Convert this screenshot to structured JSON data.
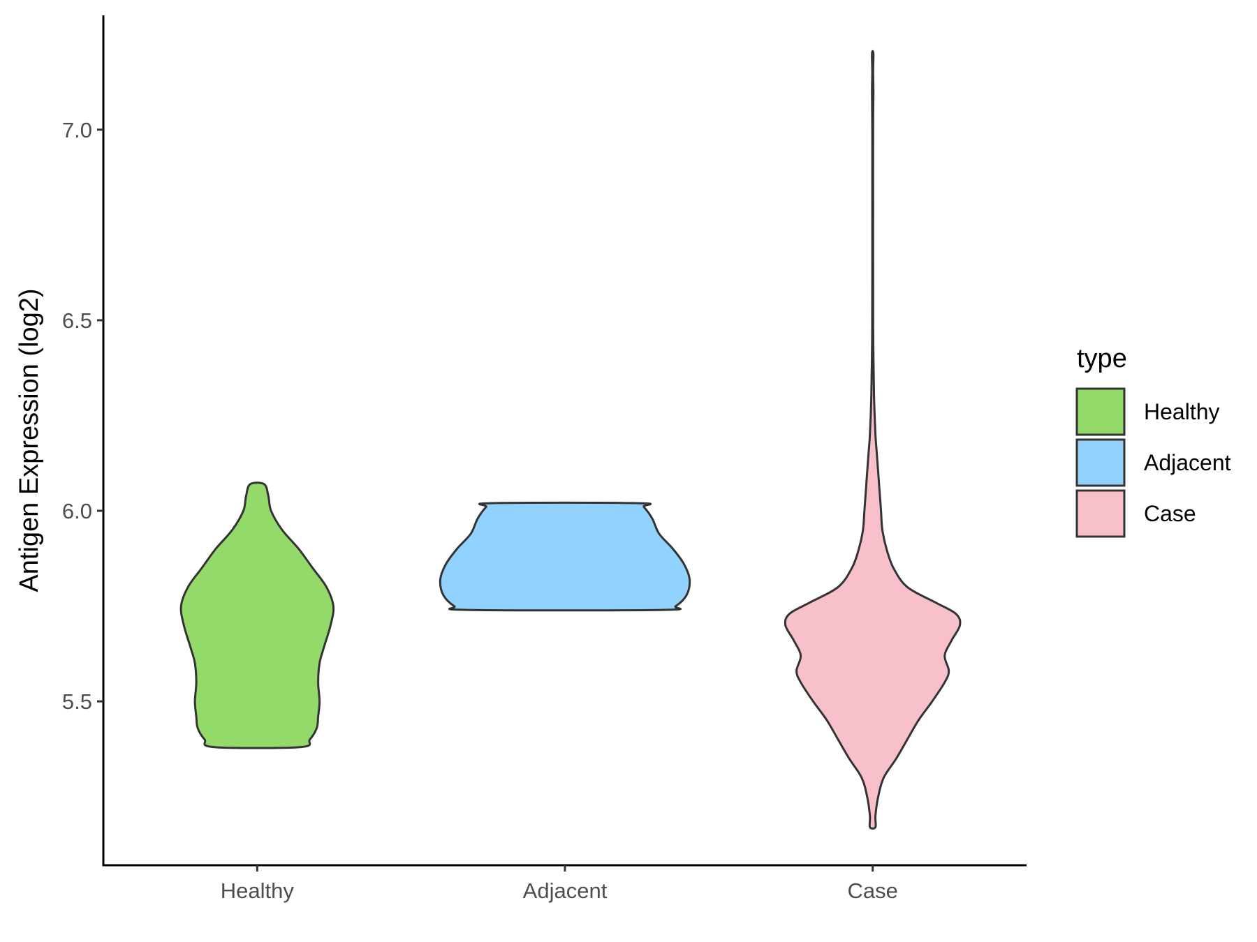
{
  "chart_data": {
    "type": "violin",
    "ylabel": "Antigen Expression (log2)",
    "xlabel": "",
    "ylim": [
      5.07,
      7.3
    ],
    "yticks": [
      5.5,
      6.0,
      6.5,
      7.0
    ],
    "ytick_labels": [
      "5.5",
      "6.0",
      "6.5",
      "7.0"
    ],
    "categories": [
      "Healthy",
      "Adjacent",
      "Case"
    ],
    "legend": {
      "title": "type",
      "position": "right",
      "entries": [
        "Healthy",
        "Adjacent",
        "Case"
      ]
    },
    "grid": false,
    "series": [
      {
        "category": "Healthy",
        "color": "#93DA6A",
        "min": 5.38,
        "max": 6.07,
        "density_profile": [
          [
            5.38,
            0.31
          ],
          [
            5.4,
            0.38
          ],
          [
            5.43,
            0.43
          ],
          [
            5.46,
            0.44
          ],
          [
            5.5,
            0.45
          ],
          [
            5.55,
            0.44
          ],
          [
            5.6,
            0.45
          ],
          [
            5.64,
            0.48
          ],
          [
            5.7,
            0.53
          ],
          [
            5.75,
            0.55
          ],
          [
            5.8,
            0.5
          ],
          [
            5.85,
            0.4
          ],
          [
            5.9,
            0.3
          ],
          [
            5.95,
            0.18
          ],
          [
            6.0,
            0.1
          ],
          [
            6.04,
            0.08
          ],
          [
            6.07,
            0.05
          ]
        ]
      },
      {
        "category": "Adjacent",
        "color": "#92D2FF",
        "min": 5.74,
        "max": 6.02,
        "density_profile": [
          [
            5.74,
            0.7
          ],
          [
            5.75,
            0.8
          ],
          [
            5.78,
            0.88
          ],
          [
            5.82,
            0.9
          ],
          [
            5.86,
            0.86
          ],
          [
            5.9,
            0.78
          ],
          [
            5.94,
            0.68
          ],
          [
            5.98,
            0.63
          ],
          [
            6.01,
            0.57
          ],
          [
            6.02,
            0.53
          ]
        ]
      },
      {
        "category": "Case",
        "color": "#F7C0CB",
        "min": 5.17,
        "max": 7.2,
        "density_profile": [
          [
            5.17,
            0.02
          ],
          [
            5.2,
            0.02
          ],
          [
            5.25,
            0.04
          ],
          [
            5.3,
            0.08
          ],
          [
            5.35,
            0.17
          ],
          [
            5.4,
            0.25
          ],
          [
            5.45,
            0.33
          ],
          [
            5.5,
            0.43
          ],
          [
            5.55,
            0.52
          ],
          [
            5.58,
            0.55
          ],
          [
            5.62,
            0.52
          ],
          [
            5.66,
            0.57
          ],
          [
            5.7,
            0.63
          ],
          [
            5.73,
            0.6
          ],
          [
            5.76,
            0.45
          ],
          [
            5.8,
            0.25
          ],
          [
            5.85,
            0.15
          ],
          [
            5.9,
            0.1
          ],
          [
            5.95,
            0.07
          ],
          [
            6.0,
            0.06
          ],
          [
            6.05,
            0.05
          ],
          [
            6.1,
            0.04
          ],
          [
            6.15,
            0.03
          ],
          [
            6.2,
            0.02
          ],
          [
            6.3,
            0.01
          ],
          [
            6.45,
            0.004
          ],
          [
            6.6,
            0.003
          ],
          [
            6.8,
            0.003
          ],
          [
            7.0,
            0.003
          ],
          [
            7.1,
            0.005
          ],
          [
            7.15,
            0.003
          ],
          [
            7.2,
            0.005
          ]
        ]
      }
    ]
  }
}
